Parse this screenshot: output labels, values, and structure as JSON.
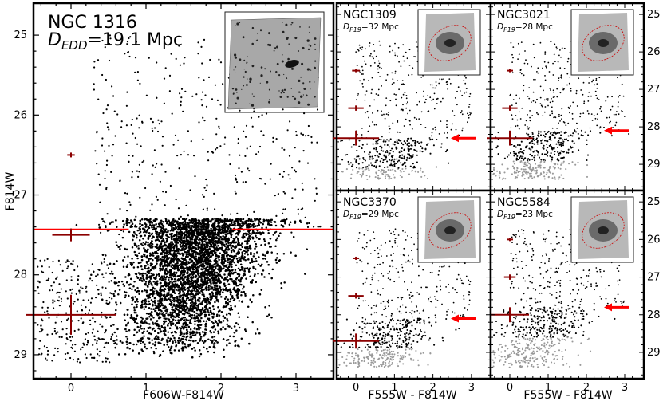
{
  "chart_data": [
    {
      "type": "scatter",
      "panel": "main",
      "name": "NGC 1316",
      "distance_label": "D",
      "distance_sub": "EDD",
      "distance_value": "=19.1 Mpc",
      "xlabel": "F606W-F814W",
      "ylabel": "F814W",
      "xlim": [
        -0.5,
        3.5
      ],
      "ylim": [
        29.3,
        24.6
      ],
      "xticks": [
        0,
        1,
        2,
        3
      ],
      "yticks": [
        25,
        26,
        27,
        28,
        29
      ],
      "trgb": 27.43,
      "trgb_line_gap": [
        0.77,
        2.15
      ],
      "cloud": {
        "center_color": 1.4,
        "center_mag": 28.3,
        "n": 5200
      },
      "error_bars": [
        {
          "mag": 26.5,
          "xerr": 0.05,
          "yerr": 0.03
        },
        {
          "mag": 27.5,
          "xerr": 0.25,
          "yerr": 0.08
        },
        {
          "mag": 28.5,
          "xerr": 0.6,
          "yerr": 0.25
        }
      ]
    },
    {
      "type": "scatter",
      "panel": "small",
      "name": "NGC1309",
      "distance_label": "D",
      "distance_sub": "F19",
      "distance_value": "=32 Mpc",
      "xlabel": "F555W - F814W",
      "ylabel": "",
      "xlim": [
        -0.5,
        3.5
      ],
      "ylim": [
        29.7,
        24.7
      ],
      "xticks": [
        0,
        1,
        2,
        3
      ],
      "yticks": [],
      "trgb": 28.3,
      "error_bars": [
        {
          "mag": 26.5,
          "xerr": 0.1,
          "yerr": 0.03
        },
        {
          "mag": 27.5,
          "xerr": 0.2,
          "yerr": 0.07
        },
        {
          "mag": 28.3,
          "xerr": 0.6,
          "yerr": 0.2
        }
      ]
    },
    {
      "type": "scatter",
      "panel": "small",
      "name": "NGC3021",
      "distance_label": "D",
      "distance_sub": "F19",
      "distance_value": "=28 Mpc",
      "xlabel": "F555W - F814W",
      "ylabel": "F814W",
      "xlim": [
        -0.5,
        3.5
      ],
      "ylim": [
        29.7,
        24.7
      ],
      "xticks": [
        0,
        1,
        2,
        3
      ],
      "yticks": [
        25,
        26,
        27,
        28,
        29
      ],
      "trgb": 28.1,
      "error_bars": [
        {
          "mag": 26.5,
          "xerr": 0.08,
          "yerr": 0.03
        },
        {
          "mag": 27.5,
          "xerr": 0.2,
          "yerr": 0.07
        },
        {
          "mag": 28.3,
          "xerr": 0.6,
          "yerr": 0.2
        }
      ]
    },
    {
      "type": "scatter",
      "panel": "small",
      "name": "NGC3370",
      "distance_label": "D",
      "distance_sub": "F19",
      "distance_value": "=29 Mpc",
      "xlabel": "F555W - F814W",
      "ylabel": "",
      "xlim": [
        -0.5,
        3.5
      ],
      "ylim": [
        29.7,
        24.7
      ],
      "xticks": [
        0,
        1,
        2,
        3
      ],
      "yticks": [],
      "trgb": 28.1,
      "error_bars": [
        {
          "mag": 26.5,
          "xerr": 0.08,
          "yerr": 0.03
        },
        {
          "mag": 27.5,
          "xerr": 0.2,
          "yerr": 0.07
        },
        {
          "mag": 28.7,
          "xerr": 0.6,
          "yerr": 0.2
        }
      ]
    },
    {
      "type": "scatter",
      "panel": "small",
      "name": "NGC5584",
      "distance_label": "D",
      "distance_sub": "F19",
      "distance_value": "=23 Mpc",
      "xlabel": "F555W - F814W",
      "ylabel": "F814W",
      "xlim": [
        -0.5,
        3.5
      ],
      "ylim": [
        29.7,
        24.7
      ],
      "xticks": [
        0,
        1,
        2,
        3
      ],
      "yticks": [
        25,
        26,
        27,
        28,
        29
      ],
      "trgb": 27.8,
      "error_bars": [
        {
          "mag": 26.0,
          "xerr": 0.08,
          "yerr": 0.03
        },
        {
          "mag": 27.0,
          "xerr": 0.15,
          "yerr": 0.07
        },
        {
          "mag": 28.0,
          "xerr": 0.5,
          "yerr": 0.2
        }
      ]
    }
  ],
  "colors": {
    "errorbar": "#8b0000",
    "trgb_line": "#ff0000",
    "arrow": "#ff0000",
    "points": "#000000",
    "ellipse": "#cc0000"
  }
}
